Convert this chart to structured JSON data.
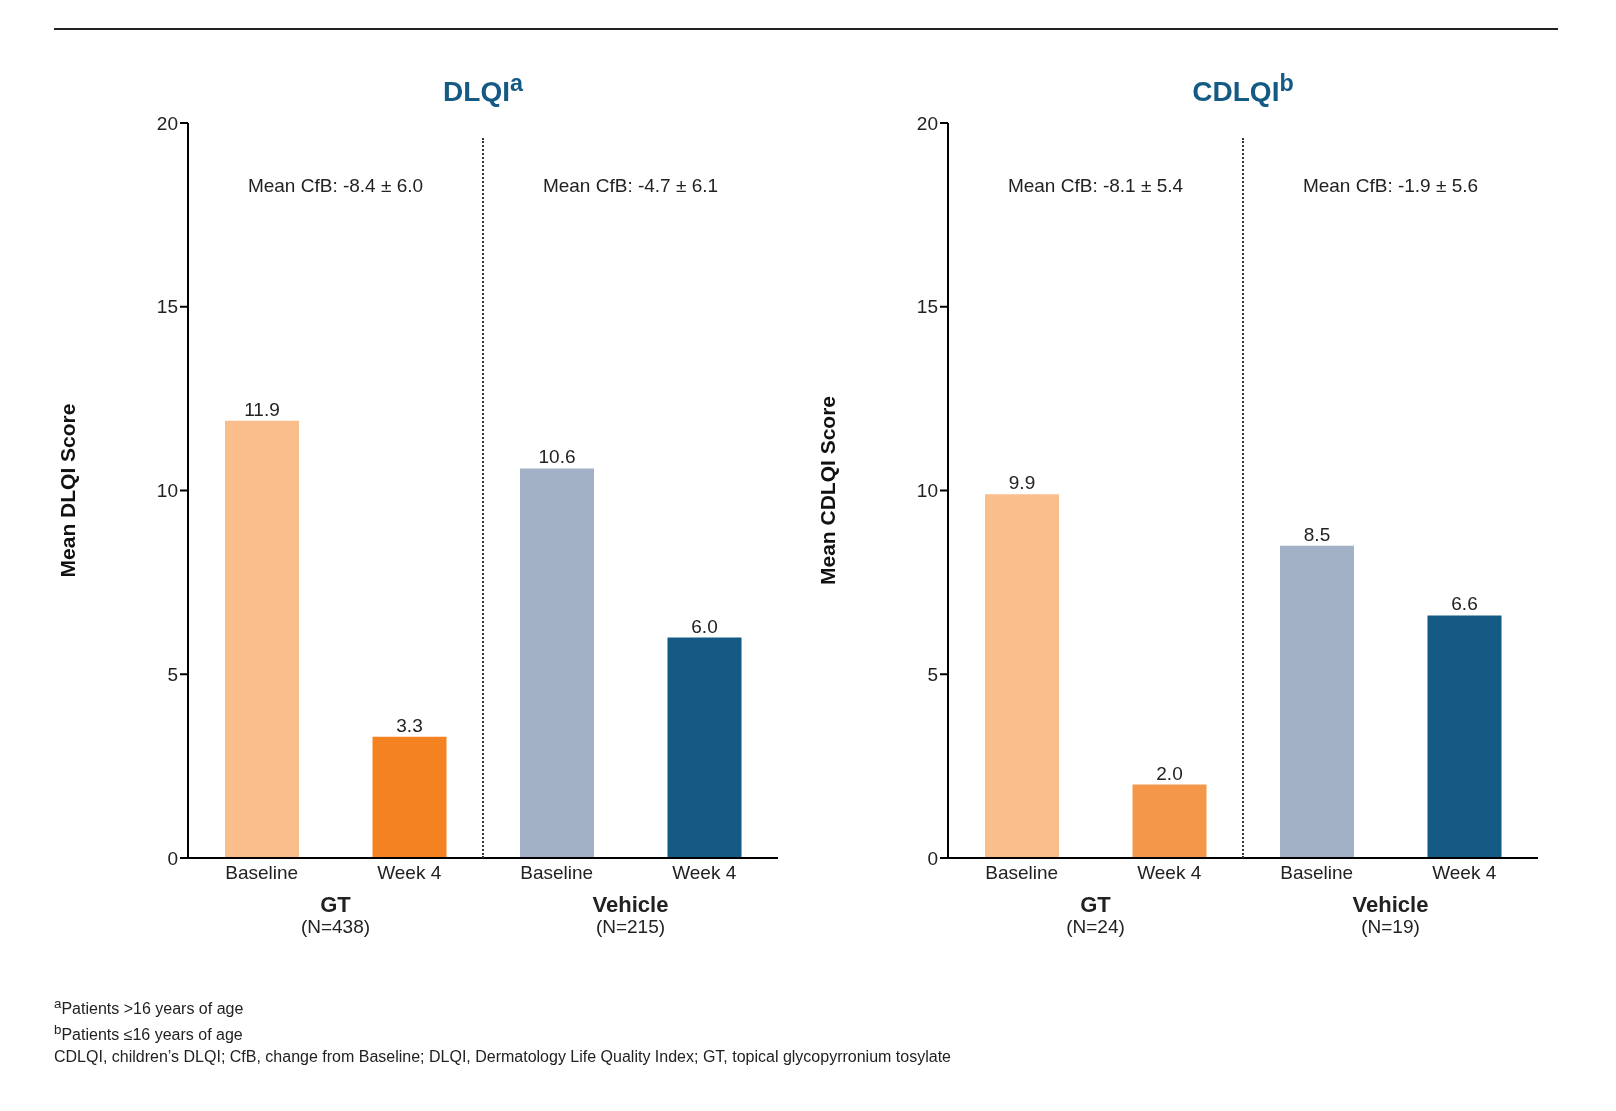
{
  "chart_data": [
    {
      "type": "bar",
      "title": "DLQI$^{a}$",
      "ylabel": "Mean DLQI Score",
      "categories": [
        "Baseline",
        "Week 4",
        "Baseline",
        "Week 4"
      ],
      "values": [
        11.9,
        3.3,
        10.6,
        6.0
      ],
      "colors": [
        "#f9be8b",
        "#f58220",
        "#a3b1c6",
        "#155a84"
      ],
      "ylim": [
        0,
        20
      ],
      "yticks": [
        0,
        5,
        10,
        15,
        20
      ],
      "grid": false,
      "legend": false,
      "value_labels": [
        "11.9",
        "3.3",
        "10.6",
        "6.0"
      ],
      "annotations": [
        "Mean CfB: -8.4 ± 6.0",
        "Mean CfB: -4.7 ± 6.1",
        "GT",
        "(N=438)",
        "Vehicle",
        "(N=215)",
        "$^{a}$Patients >16 years of age",
        "$^{b}$Patients ≤16 years of age",
        "CDLQI, children’s DLQI; CfB, change from Baseline; DLQI, Dermatology Life Quality Index; GT, topical glycopyrronium tosylate"
      ]
    },
    {
      "type": "bar",
      "title": "CDLQI$^{b}$",
      "ylabel": "Mean CDLQI Score",
      "categories": [
        "Baseline",
        "Week 4",
        "Baseline",
        "Week 4"
      ],
      "values": [
        9.9,
        2.0,
        8.5,
        6.6
      ],
      "colors": [
        "#f9be8b",
        "#f4974a",
        "#a3b1c6",
        "#155a84"
      ],
      "ylim": [
        0,
        20
      ],
      "yticks": [
        0,
        5,
        10,
        15,
        20
      ],
      "grid": false,
      "legend": false,
      "value_labels": [
        "9.9",
        "2.0",
        "8.5",
        "6.6"
      ],
      "annotations": [
        "Mean CfB: -8.1 ± 5.4",
        "Mean CfB: -1.9 ± 5.6",
        "GT",
        "(N=24)",
        "Vehicle",
        "(N=19)"
      ]
    }
  ]
}
